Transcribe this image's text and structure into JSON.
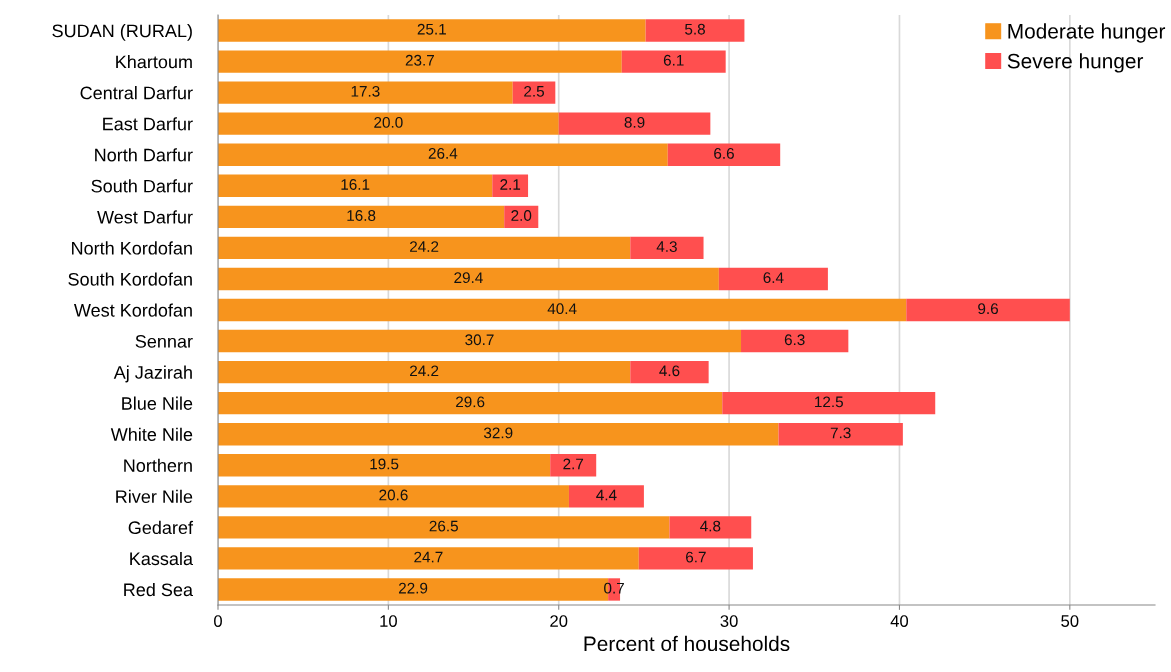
{
  "chart_data": {
    "type": "bar",
    "orientation": "horizontal",
    "stacked": true,
    "xlabel": "Percent of households",
    "categories": [
      "SUDAN (RURAL)",
      "Khartoum",
      "Central Darfur",
      "East Darfur",
      "North Darfur",
      "South Darfur",
      "West Darfur",
      "North Kordofan",
      "South Kordofan",
      "West Kordofan",
      "Sennar",
      "Aj Jazirah",
      "Blue Nile",
      "White Nile",
      "Northern",
      "River Nile",
      "Gedaref",
      "Kassala",
      "Red Sea"
    ],
    "series": [
      {
        "name": "Moderate hunger",
        "color": "#f7941d",
        "values": [
          25.1,
          23.7,
          17.3,
          20.0,
          26.4,
          16.1,
          16.8,
          24.2,
          29.4,
          40.4,
          30.7,
          24.2,
          29.6,
          32.9,
          19.5,
          20.6,
          26.5,
          24.7,
          22.9
        ]
      },
      {
        "name": "Severe hunger",
        "color": "#ff4f4f",
        "values": [
          5.8,
          6.1,
          2.5,
          8.9,
          6.6,
          2.1,
          2.0,
          4.3,
          6.4,
          9.6,
          6.3,
          4.6,
          12.5,
          7.3,
          2.7,
          4.4,
          4.8,
          6.7,
          0.7
        ]
      }
    ],
    "value_labels": [
      [
        "25.1",
        "23.7",
        "17.3",
        "20.0",
        "26.4",
        "16.1",
        "16.8",
        "24.2",
        "29.4",
        "40.4",
        "30.7",
        "24.2",
        "29.6",
        "32.9",
        "19.5",
        "20.6",
        "26.5",
        "24.7",
        "22.9"
      ],
      [
        "5.8",
        "6.1",
        "2.5",
        "8.9",
        "6.6",
        "2.1",
        "2.0",
        "4.3",
        "6.4",
        "9.6",
        "6.3",
        "4.6",
        "12.5",
        "7.3",
        "2.7",
        "4.4",
        "4.8",
        "6.7",
        "0.7"
      ]
    ],
    "xlim": [
      0,
      55
    ],
    "xticks": [
      0,
      10,
      20,
      30,
      40,
      50
    ],
    "grid": "x",
    "legend": "top right"
  }
}
